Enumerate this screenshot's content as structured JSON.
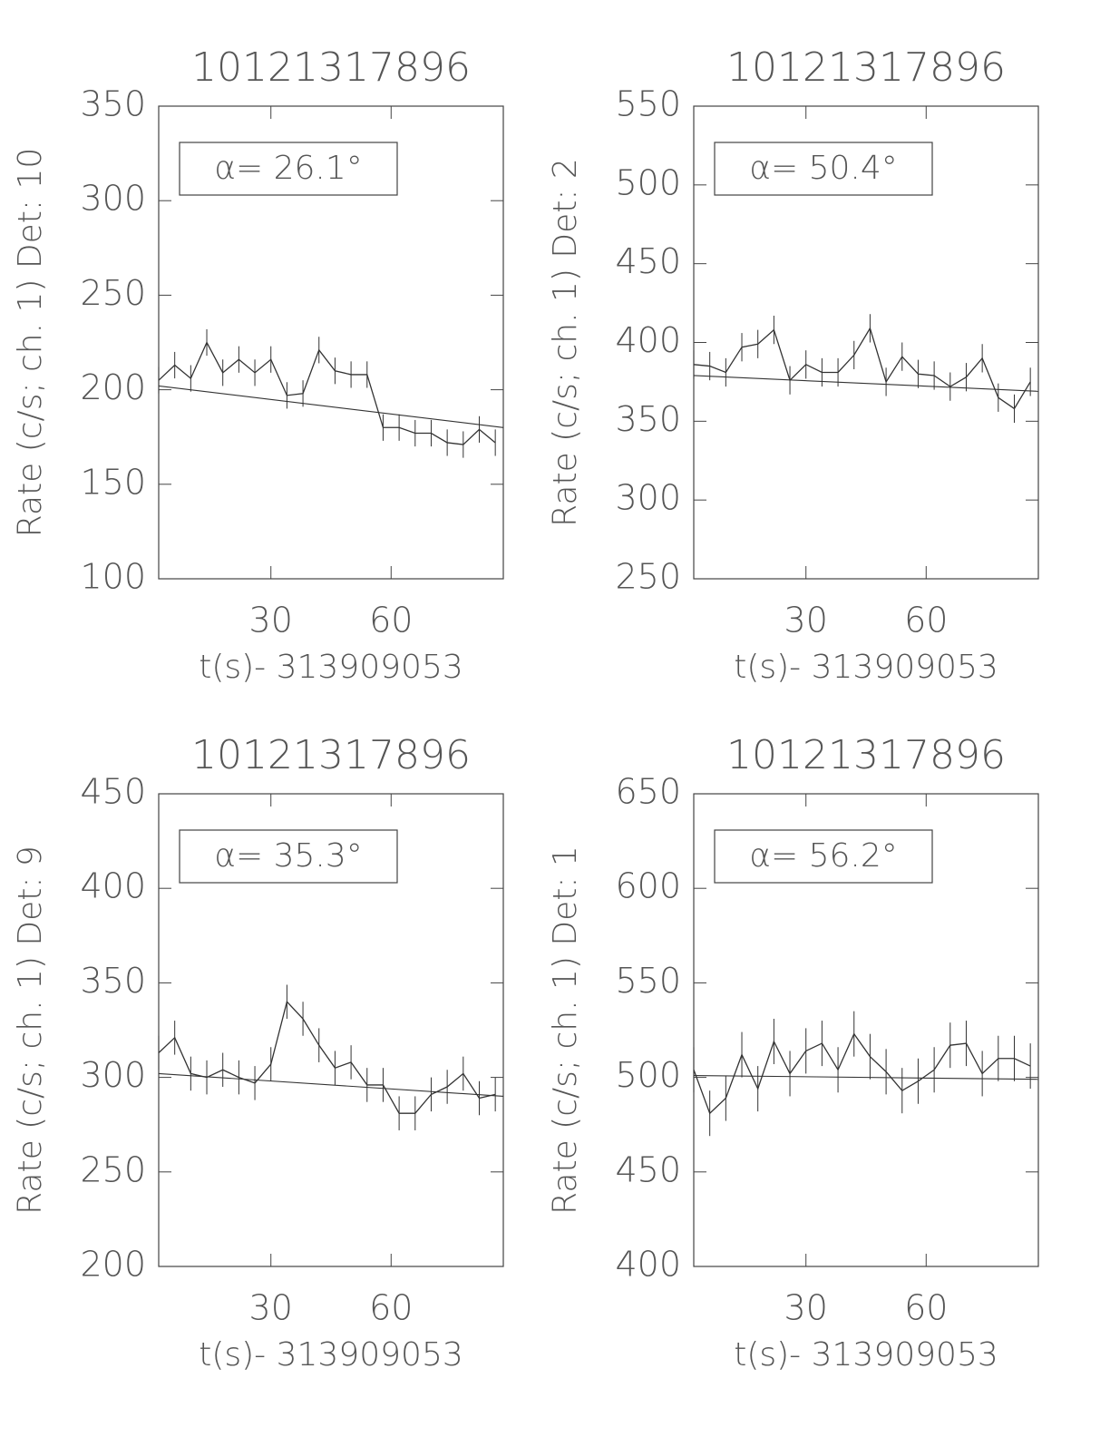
{
  "chart_data": [
    {
      "type": "line",
      "title": "10121317896",
      "ylabel": "Rate (c/s; ch. 1) Det: 10",
      "xlabel": "t(s)- 313909053",
      "annotation": "α= 26.1°",
      "color": "#333333",
      "x": [
        2,
        6,
        10,
        14,
        18,
        22,
        26,
        30,
        34,
        38,
        42,
        46,
        50,
        54,
        58,
        62,
        66,
        70,
        74,
        78,
        82,
        86
      ],
      "values": [
        205,
        213,
        206,
        225,
        209,
        216,
        209,
        216,
        197,
        198,
        221,
        210,
        208,
        208,
        180,
        180,
        177,
        177,
        172,
        171,
        179,
        172
      ],
      "errors": [
        7,
        7,
        7,
        7,
        7,
        7,
        7,
        7,
        7,
        7,
        7,
        7,
        7,
        7,
        7,
        7,
        7,
        7,
        7,
        7,
        7,
        7
      ],
      "fit": {
        "x": [
          2,
          88
        ],
        "values": [
          202,
          180
        ]
      },
      "xlim": [
        2,
        88
      ],
      "ylim": [
        100,
        350
      ],
      "xticks": [
        30,
        60
      ],
      "yticks": [
        100,
        150,
        200,
        250,
        300,
        350
      ]
    },
    {
      "type": "line",
      "title": "10121317896",
      "ylabel": "Rate (c/s; ch. 1) Det: 2",
      "xlabel": "t(s)- 313909053",
      "annotation": "α= 50.4°",
      "color": "#333333",
      "x": [
        2,
        6,
        10,
        14,
        18,
        22,
        26,
        30,
        34,
        38,
        42,
        46,
        50,
        54,
        58,
        62,
        66,
        70,
        74,
        78,
        82,
        86
      ],
      "values": [
        386,
        385,
        381,
        397,
        399,
        408,
        376,
        386,
        381,
        381,
        392,
        409,
        375,
        391,
        380,
        379,
        372,
        378,
        390,
        365,
        358,
        375
      ],
      "errors": [
        9,
        9,
        9,
        9,
        9,
        9,
        9,
        9,
        9,
        9,
        9,
        9,
        9,
        9,
        9,
        9,
        9,
        9,
        9,
        9,
        9,
        9
      ],
      "fit": {
        "x": [
          2,
          88
        ],
        "values": [
          379,
          369
        ]
      },
      "xlim": [
        2,
        88
      ],
      "ylim": [
        250,
        550
      ],
      "xticks": [
        30,
        60
      ],
      "yticks": [
        250,
        300,
        350,
        400,
        450,
        500,
        550
      ]
    },
    {
      "type": "line",
      "title": "10121317896",
      "ylabel": "Rate (c/s; ch. 1) Det: 9",
      "xlabel": "t(s)- 313909053",
      "annotation": "α= 35.3°",
      "color": "#333333",
      "x": [
        2,
        6,
        10,
        14,
        18,
        22,
        26,
        30,
        34,
        38,
        42,
        46,
        50,
        54,
        58,
        62,
        66,
        70,
        74,
        78,
        82,
        86
      ],
      "values": [
        313,
        321,
        302,
        300,
        304,
        300,
        297,
        307,
        340,
        331,
        317,
        305,
        308,
        296,
        296,
        281,
        281,
        291,
        295,
        302,
        289,
        291
      ],
      "errors": [
        9,
        9,
        9,
        9,
        9,
        9,
        9,
        9,
        9,
        9,
        9,
        9,
        9,
        9,
        9,
        9,
        9,
        9,
        9,
        9,
        9,
        9
      ],
      "fit": {
        "x": [
          2,
          88
        ],
        "values": [
          302,
          290
        ]
      },
      "xlim": [
        2,
        88
      ],
      "ylim": [
        200,
        450
      ],
      "xticks": [
        30,
        60
      ],
      "yticks": [
        200,
        250,
        300,
        350,
        400,
        450
      ]
    },
    {
      "type": "line",
      "title": "10121317896",
      "ylabel": "Rate (c/s; ch. 1) Det: 1",
      "xlabel": "t(s)- 313909053",
      "annotation": "α= 56.2°",
      "color": "#333333",
      "x": [
        2,
        6,
        10,
        14,
        18,
        22,
        26,
        30,
        34,
        38,
        42,
        46,
        50,
        54,
        58,
        62,
        66,
        70,
        74,
        78,
        82,
        86
      ],
      "values": [
        504,
        481,
        489,
        512,
        494,
        519,
        502,
        514,
        518,
        504,
        523,
        511,
        503,
        493,
        498,
        504,
        517,
        518,
        502,
        510,
        510,
        506
      ],
      "errors": [
        12,
        12,
        12,
        12,
        12,
        12,
        12,
        12,
        12,
        12,
        12,
        12,
        12,
        12,
        12,
        12,
        12,
        12,
        12,
        12,
        12,
        12
      ],
      "fit": {
        "x": [
          2,
          88
        ],
        "values": [
          501,
          499
        ]
      },
      "xlim": [
        2,
        88
      ],
      "ylim": [
        400,
        650
      ],
      "xticks": [
        30,
        60
      ],
      "yticks": [
        400,
        450,
        500,
        550,
        600,
        650
      ]
    }
  ]
}
